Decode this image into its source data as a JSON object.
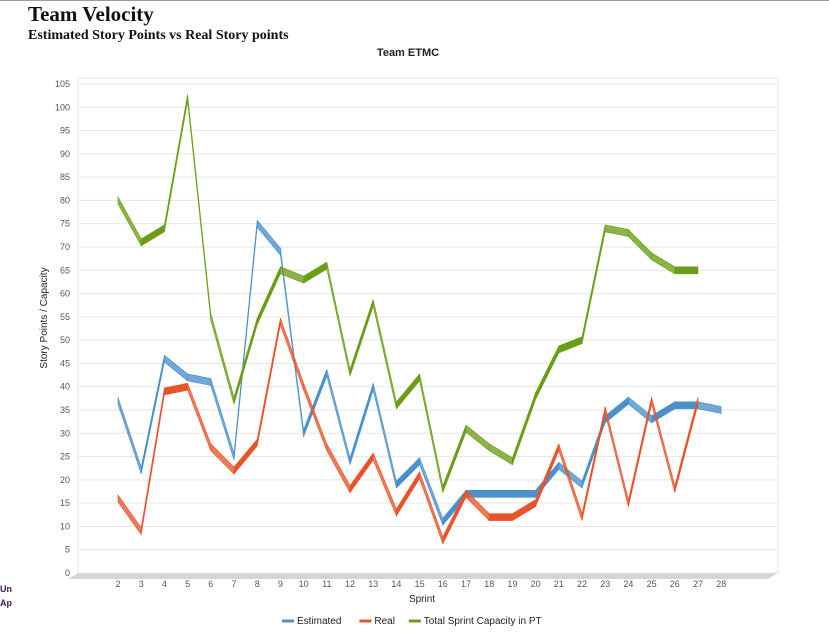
{
  "page": {
    "title": "Team Velocity",
    "subtitle": "Estimated Story Points vs Real Story points",
    "side_text_1": "Un",
    "side_text_2": "Ap"
  },
  "chart_data": {
    "type": "line",
    "title": "Team ETMC",
    "xlabel": "Sprint",
    "ylabel": "Story Points / Capacity",
    "ylim": [
      0,
      105
    ],
    "yticks": [
      0,
      5,
      10,
      15,
      20,
      25,
      30,
      35,
      40,
      45,
      50,
      55,
      60,
      65,
      70,
      75,
      80,
      85,
      90,
      95,
      100,
      105
    ],
    "categories": [
      "2",
      "3",
      "4",
      "5",
      "6",
      "7",
      "8",
      "9",
      "10",
      "11",
      "12",
      "13",
      "14",
      "15",
      "16",
      "17",
      "18",
      "19",
      "20",
      "21",
      "22",
      "23",
      "24",
      "25",
      "26",
      "27",
      "28"
    ],
    "grid": true,
    "legend_position": "bottom",
    "series": [
      {
        "name": "Estimated",
        "color": "#4a90cc",
        "values": [
          37,
          22,
          46,
          42,
          41,
          25,
          75,
          69,
          30,
          43,
          24,
          40,
          19,
          24,
          11,
          17,
          17,
          17,
          17,
          23,
          19,
          33,
          37,
          33,
          36,
          36,
          35
        ]
      },
      {
        "name": "Real",
        "color": "#e8542a",
        "values": [
          16,
          9,
          39,
          40,
          27,
          22,
          28,
          54,
          40,
          27,
          18,
          25,
          13,
          21,
          7,
          17,
          12,
          12,
          15,
          27,
          12,
          35,
          15,
          37,
          18,
          37,
          null
        ]
      },
      {
        "name": "Total Sprint Capacity in PT",
        "color": "#6a9e16",
        "values": [
          80,
          71,
          74,
          102,
          55,
          37,
          54,
          65,
          63,
          66,
          43,
          58,
          36,
          42,
          18,
          31,
          27,
          24,
          38,
          48,
          50,
          74,
          73,
          68,
          65,
          65,
          null
        ]
      }
    ]
  }
}
